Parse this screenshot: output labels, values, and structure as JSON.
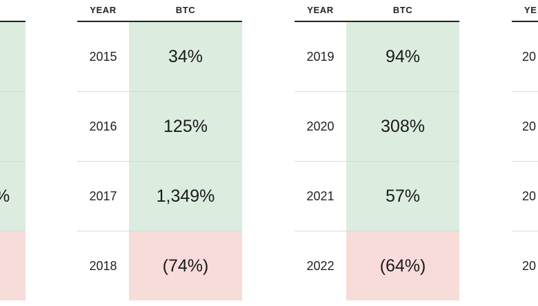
{
  "headers": {
    "year": "YEAR",
    "btc": "BTC"
  },
  "colors": {
    "gain": "#dcede0",
    "loss": "#f8dcd9",
    "header_rule": "#222222",
    "row_rule": "#d9d9d9"
  },
  "chart_data": {
    "type": "table",
    "columns": [
      "YEAR",
      "BTC"
    ],
    "tables": [
      {
        "rows": [
          {
            "year": "2015",
            "btc": "34%",
            "value": 34,
            "sign": "gain"
          },
          {
            "year": "2016",
            "btc": "125%",
            "value": 125,
            "sign": "gain"
          },
          {
            "year": "2017",
            "btc": "1,349%",
            "value": 1349,
            "sign": "gain"
          },
          {
            "year": "2018",
            "btc": "(74%)",
            "value": -74,
            "sign": "loss"
          }
        ]
      },
      {
        "rows": [
          {
            "year": "2019",
            "btc": "94%",
            "value": 94,
            "sign": "gain"
          },
          {
            "year": "2020",
            "btc": "308%",
            "value": 308,
            "sign": "gain"
          },
          {
            "year": "2021",
            "btc": "57%",
            "value": 57,
            "sign": "gain"
          },
          {
            "year": "2022",
            "btc": "(64%)",
            "value": -64,
            "sign": "loss"
          }
        ]
      }
    ],
    "partial_left": {
      "rows": [
        {
          "sign": "gain"
        },
        {
          "sign": "gain"
        },
        {
          "sign": "gain",
          "glyph": "%"
        },
        {
          "sign": "loss"
        }
      ]
    },
    "partial_right": {
      "header_glyph": "YE",
      "year_glyphs": [
        "20",
        "20",
        "20",
        "20"
      ]
    }
  }
}
